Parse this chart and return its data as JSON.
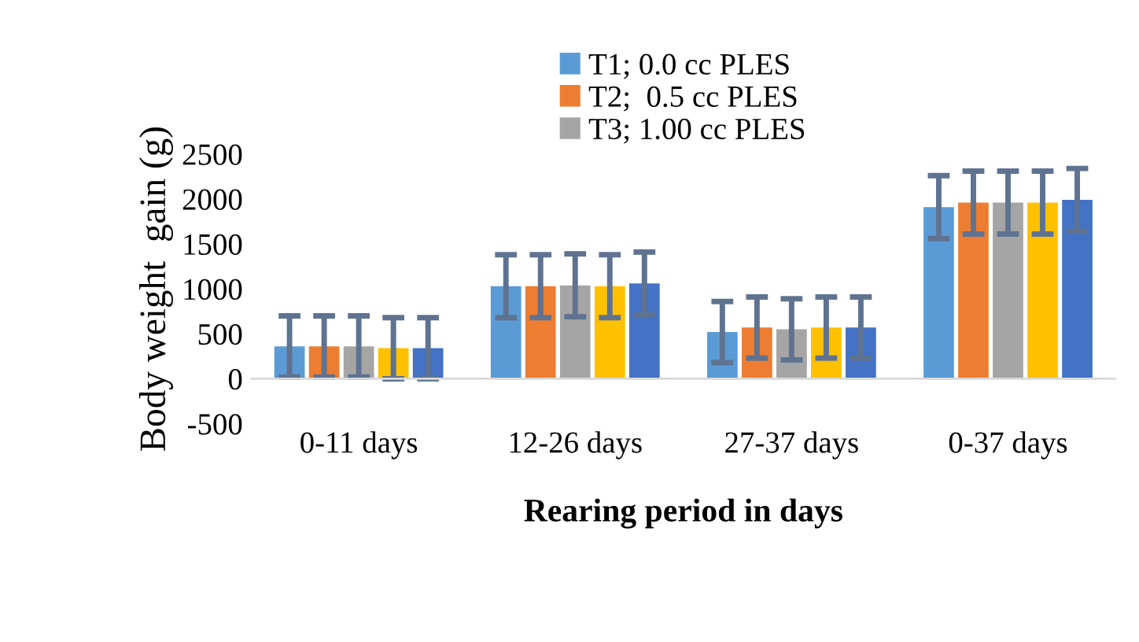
{
  "chart_data": {
    "type": "bar",
    "xlabel": "Rearing period in days",
    "ylabel": "Body weight  gain (g)",
    "categories": [
      "0-11 days",
      "12-26 days",
      "27-37 days",
      "0-37 days"
    ],
    "series": [
      {
        "name": "T1; 0.0 cc PLES",
        "color": "#5b9bd5",
        "values": [
          360,
          1030,
          520,
          1910
        ],
        "errors": [
          340,
          350,
          340,
          350
        ]
      },
      {
        "name": "T2;  0.5 cc PLES",
        "color": "#ed7d31",
        "values": [
          360,
          1030,
          570,
          1960
        ],
        "errors": [
          340,
          350,
          340,
          350
        ]
      },
      {
        "name": "T3; 1.00 cc PLES",
        "color": "#a5a5a5",
        "values": [
          360,
          1040,
          550,
          1960
        ],
        "errors": [
          340,
          350,
          340,
          350
        ]
      },
      {
        "color": "#ffc000",
        "values": [
          340,
          1030,
          570,
          1960
        ],
        "errors": [
          340,
          350,
          340,
          350
        ]
      },
      {
        "color": "#4472c4",
        "values": [
          340,
          1060,
          570,
          1990
        ],
        "errors": [
          340,
          350,
          340,
          350
        ]
      }
    ],
    "ylim": [
      -500,
      2500
    ],
    "yticks": [
      -500,
      0,
      500,
      1000,
      1500,
      2000,
      2500
    ],
    "grid": false,
    "legend": "top"
  }
}
